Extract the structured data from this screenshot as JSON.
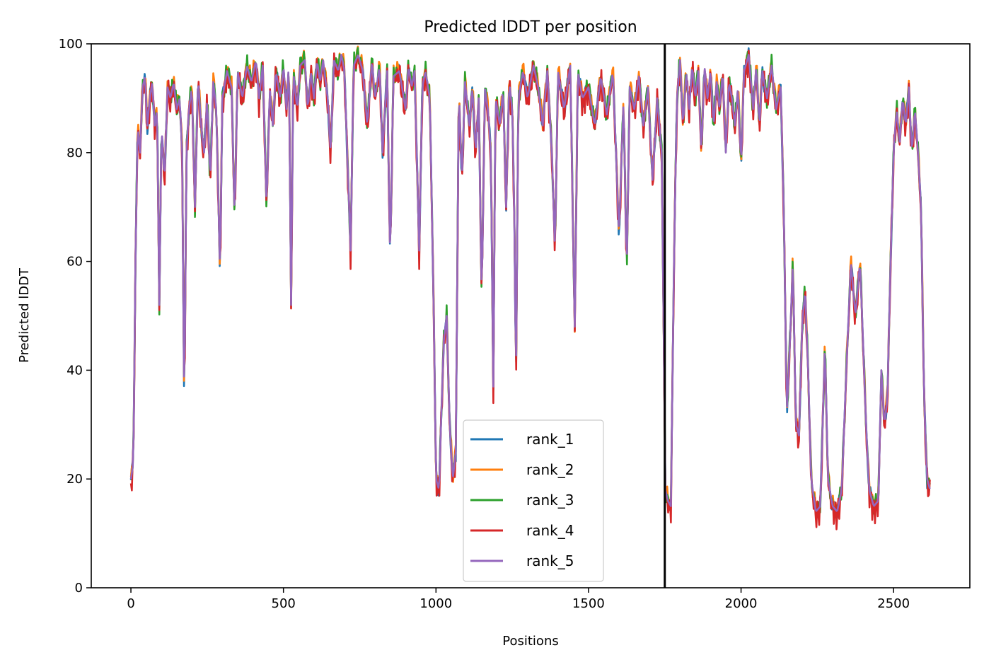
{
  "chart_data": {
    "type": "line",
    "title": "Predicted lDDT per position",
    "xlabel": "Positions",
    "ylabel": "Predicted lDDT",
    "xlim": [
      -130,
      2750
    ],
    "ylim": [
      0,
      100
    ],
    "xticks": [
      0,
      500,
      1000,
      1500,
      2000,
      2500
    ],
    "yticks": [
      0,
      20,
      40,
      60,
      80,
      100
    ],
    "grid": false,
    "legend_position": "lower center",
    "vertical_line_x": 1750,
    "base_profile": [
      [
        0,
        20
      ],
      [
        8,
        23
      ],
      [
        15,
        60
      ],
      [
        22,
        85
      ],
      [
        30,
        80
      ],
      [
        38,
        92
      ],
      [
        46,
        94
      ],
      [
        54,
        85
      ],
      [
        62,
        90
      ],
      [
        70,
        93
      ],
      [
        78,
        85
      ],
      [
        86,
        88
      ],
      [
        93,
        52
      ],
      [
        100,
        85
      ],
      [
        110,
        75
      ],
      [
        120,
        92
      ],
      [
        130,
        90
      ],
      [
        140,
        93
      ],
      [
        150,
        88
      ],
      [
        160,
        90
      ],
      [
        168,
        80
      ],
      [
        175,
        32
      ],
      [
        182,
        80
      ],
      [
        190,
        88
      ],
      [
        200,
        92
      ],
      [
        210,
        70
      ],
      [
        220,
        94
      ],
      [
        230,
        85
      ],
      [
        240,
        80
      ],
      [
        250,
        90
      ],
      [
        260,
        75
      ],
      [
        270,
        93
      ],
      [
        280,
        88
      ],
      [
        292,
        58
      ],
      [
        300,
        90
      ],
      [
        315,
        95
      ],
      [
        330,
        92
      ],
      [
        340,
        68
      ],
      [
        350,
        95
      ],
      [
        365,
        90
      ],
      [
        380,
        96
      ],
      [
        395,
        93
      ],
      [
        410,
        97
      ],
      [
        420,
        90
      ],
      [
        432,
        96
      ],
      [
        445,
        70
      ],
      [
        455,
        92
      ],
      [
        465,
        85
      ],
      [
        475,
        95
      ],
      [
        490,
        90
      ],
      [
        500,
        96
      ],
      [
        510,
        88
      ],
      [
        518,
        97
      ],
      [
        525,
        52
      ],
      [
        532,
        95
      ],
      [
        545,
        88
      ],
      [
        555,
        96
      ],
      [
        570,
        97
      ],
      [
        580,
        88
      ],
      [
        590,
        95
      ],
      [
        600,
        90
      ],
      [
        610,
        97
      ],
      [
        620,
        93
      ],
      [
        630,
        97
      ],
      [
        645,
        90
      ],
      [
        655,
        80
      ],
      [
        665,
        97
      ],
      [
        680,
        95
      ],
      [
        690,
        98
      ],
      [
        700,
        95
      ],
      [
        720,
        62
      ],
      [
        730,
        96
      ],
      [
        745,
        98
      ],
      [
        760,
        95
      ],
      [
        775,
        85
      ],
      [
        790,
        97
      ],
      [
        800,
        90
      ],
      [
        815,
        96
      ],
      [
        825,
        80
      ],
      [
        840,
        95
      ],
      [
        850,
        60
      ],
      [
        860,
        94
      ],
      [
        880,
        95
      ],
      [
        900,
        88
      ],
      [
        910,
        96
      ],
      [
        920,
        92
      ],
      [
        930,
        95
      ],
      [
        945,
        62
      ],
      [
        955,
        92
      ],
      [
        965,
        95
      ],
      [
        980,
        90
      ],
      [
        993,
        50
      ],
      [
        1000,
        20
      ],
      [
        1010,
        18
      ],
      [
        1025,
        45
      ],
      [
        1035,
        50
      ],
      [
        1045,
        30
      ],
      [
        1055,
        20
      ],
      [
        1065,
        25
      ],
      [
        1075,
        92
      ],
      [
        1085,
        75
      ],
      [
        1095,
        93
      ],
      [
        1110,
        85
      ],
      [
        1120,
        92
      ],
      [
        1130,
        80
      ],
      [
        1140,
        90
      ],
      [
        1150,
        53
      ],
      [
        1160,
        92
      ],
      [
        1170,
        88
      ],
      [
        1180,
        80
      ],
      [
        1188,
        37
      ],
      [
        1195,
        90
      ],
      [
        1210,
        85
      ],
      [
        1220,
        92
      ],
      [
        1230,
        70
      ],
      [
        1240,
        93
      ],
      [
        1250,
        88
      ],
      [
        1258,
        65
      ],
      [
        1262,
        36
      ],
      [
        1270,
        90
      ],
      [
        1285,
        95
      ],
      [
        1300,
        90
      ],
      [
        1320,
        96
      ],
      [
        1335,
        92
      ],
      [
        1350,
        85
      ],
      [
        1365,
        95
      ],
      [
        1380,
        80
      ],
      [
        1390,
        62
      ],
      [
        1400,
        95
      ],
      [
        1420,
        88
      ],
      [
        1440,
        96
      ],
      [
        1455,
        48
      ],
      [
        1465,
        95
      ],
      [
        1480,
        90
      ],
      [
        1500,
        92
      ],
      [
        1520,
        85
      ],
      [
        1540,
        94
      ],
      [
        1560,
        87
      ],
      [
        1580,
        95
      ],
      [
        1600,
        65
      ],
      [
        1615,
        90
      ],
      [
        1625,
        58
      ],
      [
        1635,
        92
      ],
      [
        1650,
        88
      ],
      [
        1665,
        94
      ],
      [
        1680,
        85
      ],
      [
        1695,
        92
      ],
      [
        1710,
        75
      ],
      [
        1725,
        90
      ],
      [
        1740,
        80
      ],
      [
        1748,
        40
      ],
      [
        1752,
        18
      ],
      [
        1760,
        16
      ],
      [
        1770,
        15
      ],
      [
        1780,
        60
      ],
      [
        1790,
        90
      ],
      [
        1800,
        97
      ],
      [
        1810,
        85
      ],
      [
        1820,
        95
      ],
      [
        1830,
        88
      ],
      [
        1840,
        96
      ],
      [
        1850,
        90
      ],
      [
        1860,
        95
      ],
      [
        1870,
        80
      ],
      [
        1880,
        96
      ],
      [
        1890,
        90
      ],
      [
        1900,
        95
      ],
      [
        1910,
        85
      ],
      [
        1920,
        93
      ],
      [
        1930,
        88
      ],
      [
        1940,
        95
      ],
      [
        1950,
        80
      ],
      [
        1960,
        93
      ],
      [
        1970,
        90
      ],
      [
        1980,
        85
      ],
      [
        1990,
        92
      ],
      [
        2000,
        78
      ],
      [
        2010,
        95
      ],
      [
        2025,
        98
      ],
      [
        2040,
        88
      ],
      [
        2050,
        96
      ],
      [
        2060,
        85
      ],
      [
        2070,
        95
      ],
      [
        2085,
        90
      ],
      [
        2100,
        96
      ],
      [
        2115,
        88
      ],
      [
        2130,
        92
      ],
      [
        2140,
        70
      ],
      [
        2150,
        32
      ],
      [
        2160,
        45
      ],
      [
        2170,
        60
      ],
      [
        2180,
        30
      ],
      [
        2190,
        28
      ],
      [
        2200,
        48
      ],
      [
        2210,
        55
      ],
      [
        2220,
        40
      ],
      [
        2230,
        20
      ],
      [
        2245,
        14
      ],
      [
        2260,
        15
      ],
      [
        2275,
        45
      ],
      [
        2285,
        20
      ],
      [
        2300,
        15
      ],
      [
        2315,
        14
      ],
      [
        2330,
        18
      ],
      [
        2345,
        40
      ],
      [
        2360,
        60
      ],
      [
        2375,
        50
      ],
      [
        2390,
        60
      ],
      [
        2400,
        45
      ],
      [
        2410,
        30
      ],
      [
        2420,
        18
      ],
      [
        2435,
        15
      ],
      [
        2450,
        16
      ],
      [
        2460,
        40
      ],
      [
        2470,
        30
      ],
      [
        2480,
        35
      ],
      [
        2490,
        60
      ],
      [
        2500,
        80
      ],
      [
        2510,
        88
      ],
      [
        2520,
        82
      ],
      [
        2530,
        90
      ],
      [
        2540,
        85
      ],
      [
        2550,
        92
      ],
      [
        2560,
        80
      ],
      [
        2570,
        88
      ],
      [
        2580,
        80
      ],
      [
        2590,
        70
      ],
      [
        2600,
        35
      ],
      [
        2610,
        20
      ],
      [
        2620,
        18
      ]
    ],
    "series": [
      {
        "name": "rank_1",
        "color": "#1f77b4",
        "offset": -0.2,
        "jitter": 1.6
      },
      {
        "name": "rank_2",
        "color": "#ff7f0e",
        "offset": 0.4,
        "jitter": 1.8
      },
      {
        "name": "rank_3",
        "color": "#2ca02c",
        "offset": 0.0,
        "jitter": 2.2
      },
      {
        "name": "rank_4",
        "color": "#d62728",
        "offset": -0.8,
        "jitter": 2.8
      },
      {
        "name": "rank_5",
        "color": "#9467bd",
        "offset": 0.0,
        "jitter": 0.0
      }
    ]
  }
}
